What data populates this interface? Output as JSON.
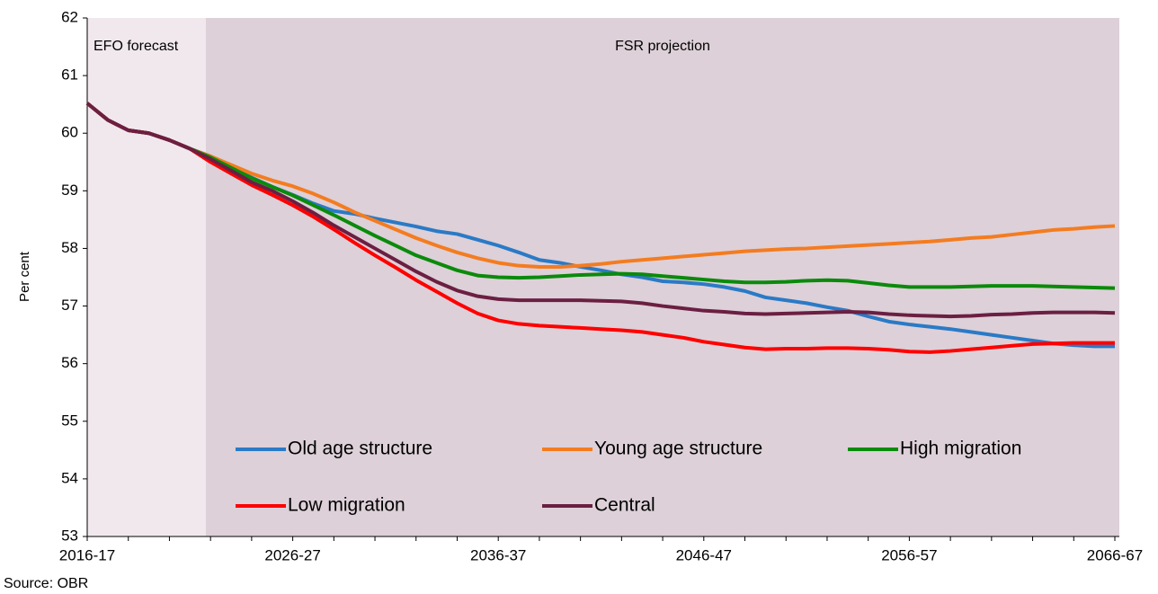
{
  "chart_data": {
    "type": "line",
    "ylabel": "Per cent",
    "source": "Source: OBR",
    "annotations": [
      "EFO forecast",
      "FSR projection"
    ],
    "categories": [
      "2016-17",
      null,
      null,
      null,
      null,
      null,
      null,
      null,
      null,
      null,
      "2026-27",
      null,
      null,
      null,
      null,
      null,
      null,
      null,
      null,
      null,
      "2036-37",
      null,
      null,
      null,
      null,
      null,
      null,
      null,
      null,
      null,
      "2046-47",
      null,
      null,
      null,
      null,
      null,
      null,
      null,
      null,
      null,
      "2056-57",
      null,
      null,
      null,
      null,
      null,
      null,
      null,
      null,
      null,
      "2066-67"
    ],
    "ylim": [
      53,
      62
    ],
    "yticks": [
      53,
      54,
      55,
      56,
      57,
      58,
      59,
      60,
      61,
      62
    ],
    "grid": false,
    "series": [
      {
        "name": "Old age structure",
        "color": "#2a7ac6",
        "values": [
          60.52,
          60.23,
          60.05,
          60.0,
          59.88,
          59.73,
          59.6,
          59.42,
          59.23,
          59.07,
          58.93,
          58.78,
          58.65,
          58.6,
          58.52,
          58.45,
          58.38,
          58.3,
          58.25,
          58.15,
          58.05,
          57.93,
          57.8,
          57.75,
          57.68,
          57.62,
          57.55,
          57.5,
          57.43,
          57.41,
          57.38,
          57.33,
          57.26,
          57.15,
          57.1,
          57.05,
          56.98,
          56.92,
          56.82,
          56.73,
          56.68,
          56.64,
          56.6,
          56.55,
          56.5,
          56.45,
          56.4,
          56.35,
          56.32,
          56.3,
          56.3
        ]
      },
      {
        "name": "Young age structure",
        "color": "#f47c20",
        "values": [
          60.52,
          60.23,
          60.05,
          60.0,
          59.88,
          59.73,
          59.6,
          59.45,
          59.3,
          59.18,
          59.08,
          58.95,
          58.8,
          58.63,
          58.48,
          58.33,
          58.18,
          58.05,
          57.93,
          57.83,
          57.75,
          57.7,
          57.68,
          57.68,
          57.7,
          57.73,
          57.77,
          57.8,
          57.83,
          57.86,
          57.89,
          57.92,
          57.95,
          57.97,
          57.99,
          58.0,
          58.02,
          58.04,
          58.06,
          58.08,
          58.1,
          58.12,
          58.15,
          58.18,
          58.2,
          58.24,
          58.28,
          58.32,
          58.34,
          58.37,
          58.39
        ]
      },
      {
        "name": "High migration",
        "color": "#0b8a0b",
        "values": [
          60.52,
          60.23,
          60.05,
          60.0,
          59.88,
          59.73,
          59.58,
          59.4,
          59.22,
          59.07,
          58.92,
          58.75,
          58.58,
          58.4,
          58.22,
          58.05,
          57.88,
          57.75,
          57.62,
          57.53,
          57.5,
          57.49,
          57.5,
          57.52,
          57.54,
          57.55,
          57.56,
          57.55,
          57.52,
          57.49,
          57.46,
          57.43,
          57.41,
          57.41,
          57.42,
          57.44,
          57.45,
          57.44,
          57.4,
          57.36,
          57.33,
          57.33,
          57.33,
          57.34,
          57.35,
          57.35,
          57.35,
          57.34,
          57.33,
          57.32,
          57.31
        ]
      },
      {
        "name": "Low migration",
        "color": "#ff0000",
        "values": [
          60.52,
          60.23,
          60.05,
          60.0,
          59.88,
          59.73,
          59.5,
          59.3,
          59.1,
          58.93,
          58.75,
          58.55,
          58.33,
          58.1,
          57.88,
          57.67,
          57.45,
          57.25,
          57.05,
          56.87,
          56.75,
          56.69,
          56.66,
          56.64,
          56.62,
          56.6,
          56.58,
          56.55,
          56.5,
          56.45,
          56.38,
          56.33,
          56.28,
          56.25,
          56.26,
          56.26,
          56.27,
          56.27,
          56.26,
          56.24,
          56.21,
          56.2,
          56.22,
          56.25,
          56.28,
          56.31,
          56.34,
          56.35,
          56.36,
          56.36,
          56.36
        ]
      },
      {
        "name": "Central",
        "color": "#6b1f42",
        "values": [
          60.52,
          60.23,
          60.05,
          60.0,
          59.88,
          59.73,
          59.55,
          59.35,
          59.15,
          59.0,
          58.82,
          58.62,
          58.4,
          58.2,
          58.0,
          57.8,
          57.6,
          57.42,
          57.27,
          57.17,
          57.12,
          57.1,
          57.1,
          57.1,
          57.1,
          57.09,
          57.08,
          57.05,
          57.0,
          56.96,
          56.92,
          56.9,
          56.87,
          56.86,
          56.87,
          56.88,
          56.89,
          56.9,
          56.89,
          56.86,
          56.84,
          56.83,
          56.82,
          56.83,
          56.85,
          56.86,
          56.88,
          56.89,
          56.89,
          56.89,
          56.88
        ]
      }
    ]
  }
}
